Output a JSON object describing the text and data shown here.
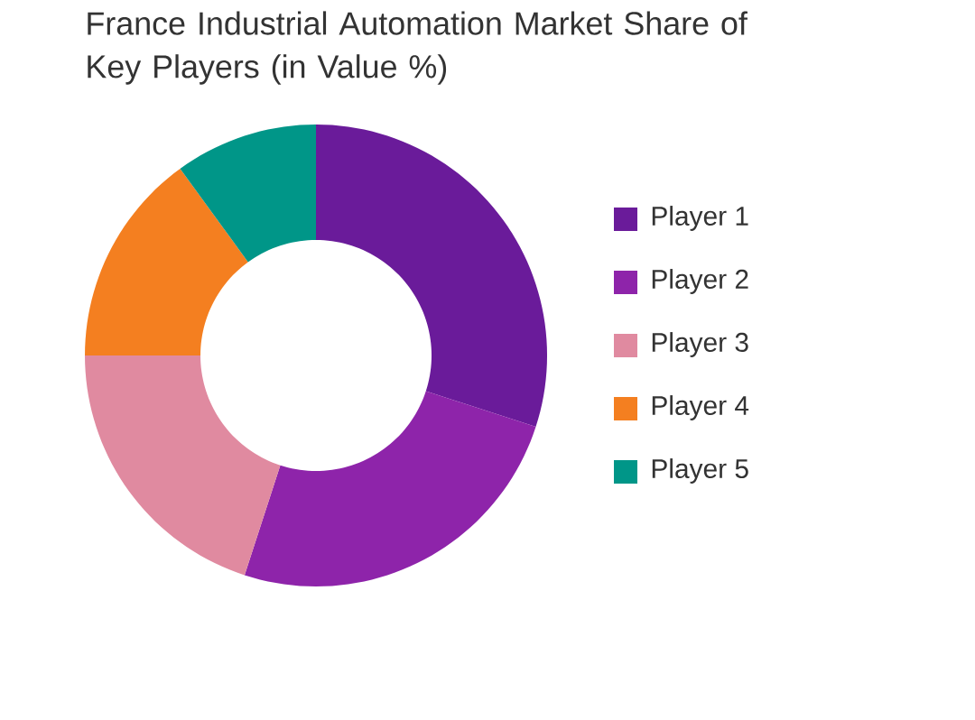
{
  "chart_data": {
    "type": "donut",
    "title": "France Industrial Automation Market Share of Key Players (in Value %)",
    "categories": [
      "Player 1",
      "Player 2",
      "Player 3",
      "Player 4",
      "Player 5"
    ],
    "values": [
      30,
      25,
      20,
      15,
      10
    ],
    "colors": [
      "#6a1b9a",
      "#8e24aa",
      "#e08aa0",
      "#f47f20",
      "#009688"
    ],
    "legend": "right"
  }
}
